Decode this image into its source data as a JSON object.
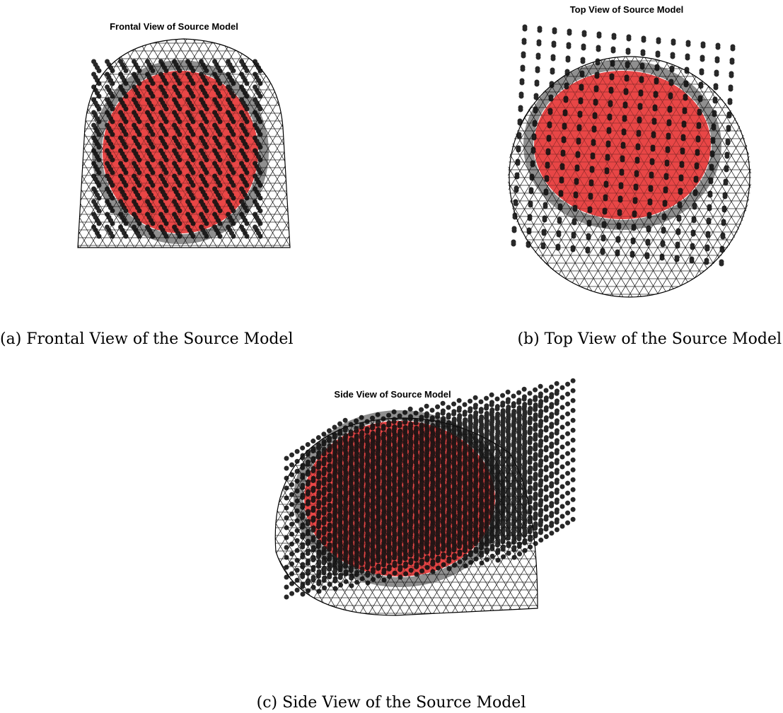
{
  "panels": [
    {
      "title": "Frontal View of Source Model",
      "caption": "(a) Frontal View of the Source Model"
    },
    {
      "title": "Top View of Source Model",
      "caption": "(b) Top View of the Source Model"
    },
    {
      "title": "Side View of Source Model",
      "caption": "(c) Side View of the Source Model"
    }
  ]
}
